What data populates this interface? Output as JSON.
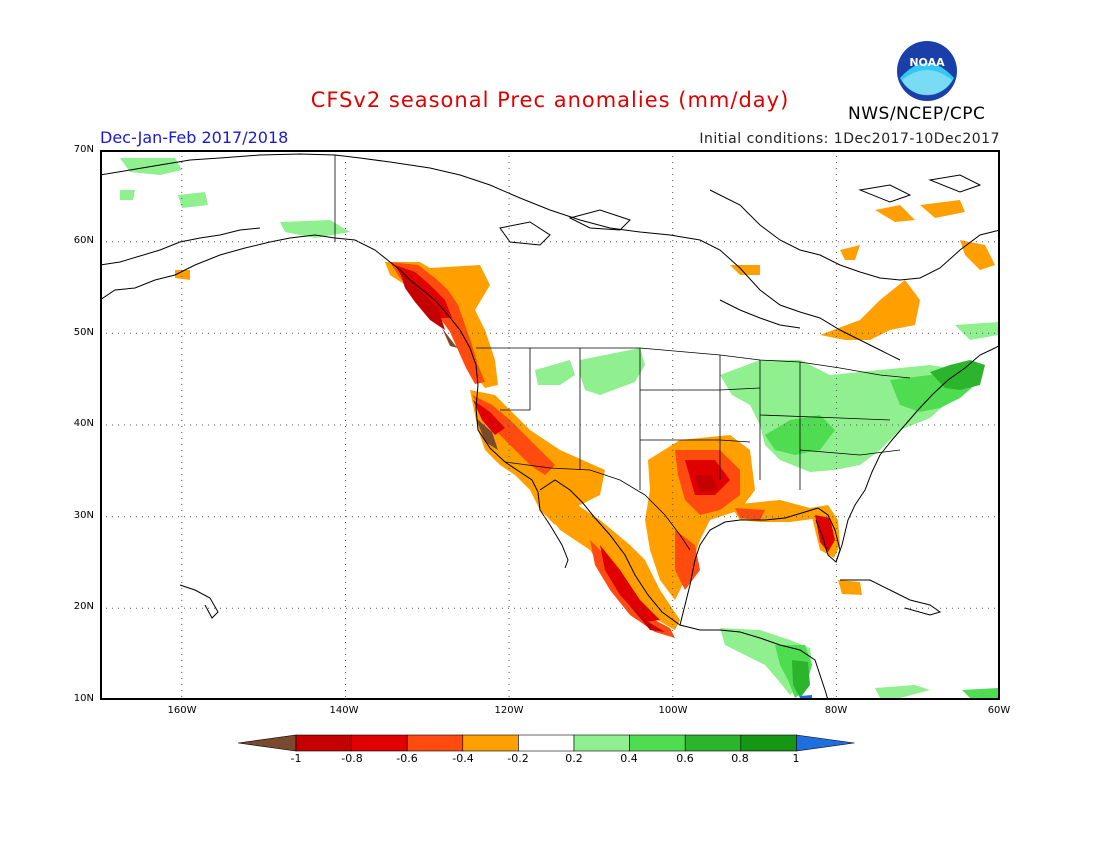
{
  "header": {
    "title": "CFSv2 seasonal Prec anomalies (mm/day)",
    "season": "Dec-Jan-Feb 2017/2018",
    "initial_conditions": "Initial conditions: 1Dec2017-10Dec2017",
    "agency": "NWS/NCEP/CPC",
    "logo_text": "NOAA"
  },
  "map": {
    "domain_lat": [
      10,
      70
    ],
    "domain_lon": [
      -170,
      -60
    ],
    "lat_labels": [
      "70N",
      "60N",
      "50N",
      "40N",
      "30N",
      "20N",
      "10N"
    ],
    "lon_labels": [
      "160W",
      "140W",
      "120W",
      "100W",
      "80W",
      "60W"
    ],
    "gridlines": "dotted"
  },
  "colorbar": {
    "labels": [
      "-1",
      "-0.8",
      "-0.6",
      "-0.4",
      "-0.2",
      "0.2",
      "0.4",
      "0.6",
      "0.8",
      "1"
    ],
    "colors": [
      "#7b4a2e",
      "#c40000",
      "#e00000",
      "#ff4a10",
      "#ffa000",
      "#ffffff",
      "#90f090",
      "#50dc50",
      "#2cb42c",
      "#159615",
      "#1e6ee0"
    ]
  }
}
